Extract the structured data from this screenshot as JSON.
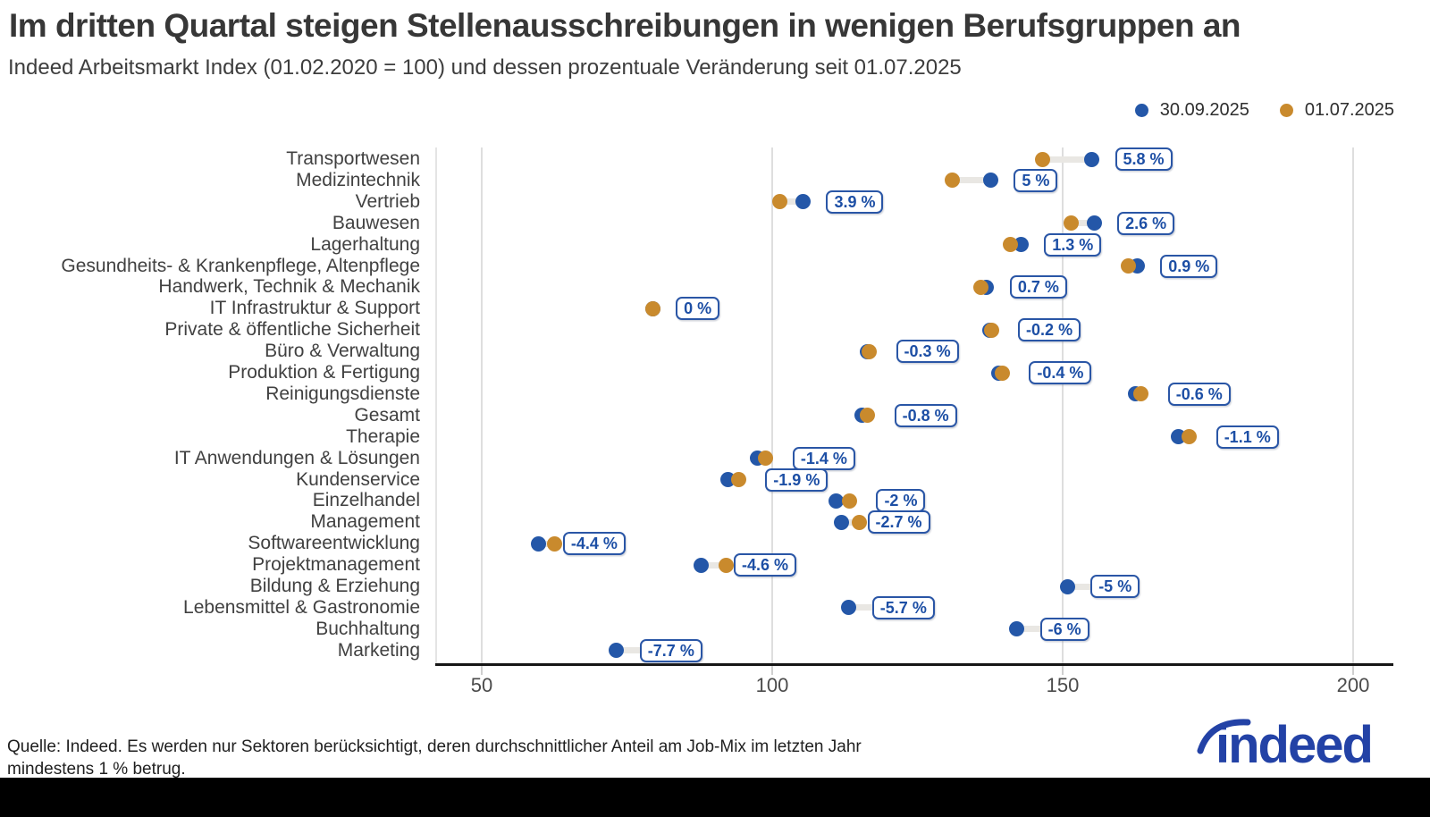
{
  "title": "Im dritten Quartal steigen Stellenausschreibungen in wenigen Berufsgruppen an",
  "subtitle": "Indeed Arbeitsmarkt Index (01.02.2020 = 100) und dessen prozentuale Veränderung seit 01.07.2025",
  "legend": [
    {
      "label": "30.09.2025",
      "color": "#2457a8"
    },
    {
      "label": "01.07.2025",
      "color": "#c98a2d"
    }
  ],
  "colors": {
    "sep_dot": "#2457a8",
    "jul_dot": "#c98a2d",
    "label_blue": "#1d4fa5",
    "connector": "#e9e7e3",
    "gridline": "#dedede",
    "axis": "#161616",
    "logo_blue": "#2342a6"
  },
  "chart_data": {
    "type": "dumbbell",
    "title": "Im dritten Quartal steigen Stellenausschreibungen in wenigen Berufsgruppen an",
    "subtitle": "Indeed Arbeitsmarkt Index (01.02.2020 = 100) und dessen prozentuale Veränderung seit 01.07.2025",
    "series_names": [
      "30.09.2025",
      "01.07.2025"
    ],
    "x_axis": {
      "ticks": [
        50,
        100,
        150,
        200
      ],
      "label": "Indeed Arbeitsmarkt Index"
    },
    "grid": true,
    "legend_position": "top-right",
    "rows": [
      {
        "category": "Transportwesen",
        "value_2025_07_01": 146.5,
        "value_2025_09_30": 155.0,
        "change_pct": 5.8,
        "change_label": "5.8 %"
      },
      {
        "category": "Medizintechnik",
        "value_2025_07_01": 131.0,
        "value_2025_09_30": 137.6,
        "change_pct": 5.0,
        "change_label": "5 %"
      },
      {
        "category": "Vertrieb",
        "value_2025_07_01": 101.3,
        "value_2025_09_30": 105.3,
        "change_pct": 3.9,
        "change_label": "3.9 %"
      },
      {
        "category": "Bauwesen",
        "value_2025_07_01": 151.5,
        "value_2025_09_30": 155.4,
        "change_pct": 2.6,
        "change_label": "2.6 %"
      },
      {
        "category": "Lagerhaltung",
        "value_2025_07_01": 141.0,
        "value_2025_09_30": 142.8,
        "change_pct": 1.3,
        "change_label": "1.3 %"
      },
      {
        "category": "Gesundheits- & Krankenpflege, Altenpflege",
        "value_2025_07_01": 161.3,
        "value_2025_09_30": 162.8,
        "change_pct": 0.9,
        "change_label": "0.9 %"
      },
      {
        "category": "Handwerk, Technik & Mechanik",
        "value_2025_07_01": 135.9,
        "value_2025_09_30": 136.9,
        "change_pct": 0.7,
        "change_label": "0.7 %"
      },
      {
        "category": "IT Infrastruktur & Support",
        "value_2025_07_01": 79.4,
        "value_2025_09_30": 79.4,
        "change_pct": 0.0,
        "change_label": "0 %"
      },
      {
        "category": "Private & öffentliche Sicherheit",
        "value_2025_07_01": 137.7,
        "value_2025_09_30": 137.4,
        "change_pct": -0.2,
        "change_label": "-0.2 %"
      },
      {
        "category": "Büro & Verwaltung",
        "value_2025_07_01": 116.7,
        "value_2025_09_30": 116.4,
        "change_pct": -0.3,
        "change_label": "-0.3 %"
      },
      {
        "category": "Produktion & Fertigung",
        "value_2025_07_01": 139.6,
        "value_2025_09_30": 139.0,
        "change_pct": -0.4,
        "change_label": "-0.4 %"
      },
      {
        "category": "Reinigungsdienste",
        "value_2025_07_01": 163.5,
        "value_2025_09_30": 162.5,
        "change_pct": -0.6,
        "change_label": "-0.6 %"
      },
      {
        "category": "Gesamt",
        "value_2025_07_01": 116.4,
        "value_2025_09_30": 115.5,
        "change_pct": -0.8,
        "change_label": "-0.8 %"
      },
      {
        "category": "Therapie",
        "value_2025_07_01": 171.8,
        "value_2025_09_30": 169.9,
        "change_pct": -1.1,
        "change_label": "-1.1 %"
      },
      {
        "category": "IT Anwendungen & Lösungen",
        "value_2025_07_01": 98.9,
        "value_2025_09_30": 97.5,
        "change_pct": -1.4,
        "change_label": "-1.4 %"
      },
      {
        "category": "Kundenservice",
        "value_2025_07_01": 94.2,
        "value_2025_09_30": 92.4,
        "change_pct": -1.9,
        "change_label": "-1.9 %"
      },
      {
        "category": "Einzelhandel",
        "value_2025_07_01": 113.3,
        "value_2025_09_30": 111.0,
        "change_pct": -2.0,
        "change_label": "-2 %"
      },
      {
        "category": "Management",
        "value_2025_07_01": 115.0,
        "value_2025_09_30": 111.9,
        "change_pct": -2.7,
        "change_label": "-2.7 %"
      },
      {
        "category": "Softwareentwicklung",
        "value_2025_07_01": 62.6,
        "value_2025_09_30": 59.8,
        "change_pct": -4.4,
        "change_label": "-4.4 %"
      },
      {
        "category": "Projektmanagement",
        "value_2025_07_01": 92.0,
        "value_2025_09_30": 87.8,
        "change_pct": -4.6,
        "change_label": "-4.6 %"
      },
      {
        "category": "Bildung & Erziehung",
        "value_2025_07_01": 158.7,
        "value_2025_09_30": 150.8,
        "change_pct": -5.0,
        "change_label": "-5 %"
      },
      {
        "category": "Lebensmittel & Gastronomie",
        "value_2025_07_01": 120.0,
        "value_2025_09_30": 113.2,
        "change_pct": -5.7,
        "change_label": "-5.7 %"
      },
      {
        "category": "Buchhaltung",
        "value_2025_07_01": 151.2,
        "value_2025_09_30": 142.1,
        "change_pct": -6.0,
        "change_label": "-6 %"
      },
      {
        "category": "Marketing",
        "value_2025_07_01": 79.3,
        "value_2025_09_30": 73.2,
        "change_pct": -7.7,
        "change_label": "-7.7 %"
      }
    ]
  },
  "footer": {
    "line1": "Quelle: Indeed. Es werden nur Sektoren berücksichtigt, deren durchschnittlicher Anteil am Job-Mix im letzten Jahr",
    "line2": "mindestens 1 % betrug.",
    "logo_text": "indeed"
  }
}
